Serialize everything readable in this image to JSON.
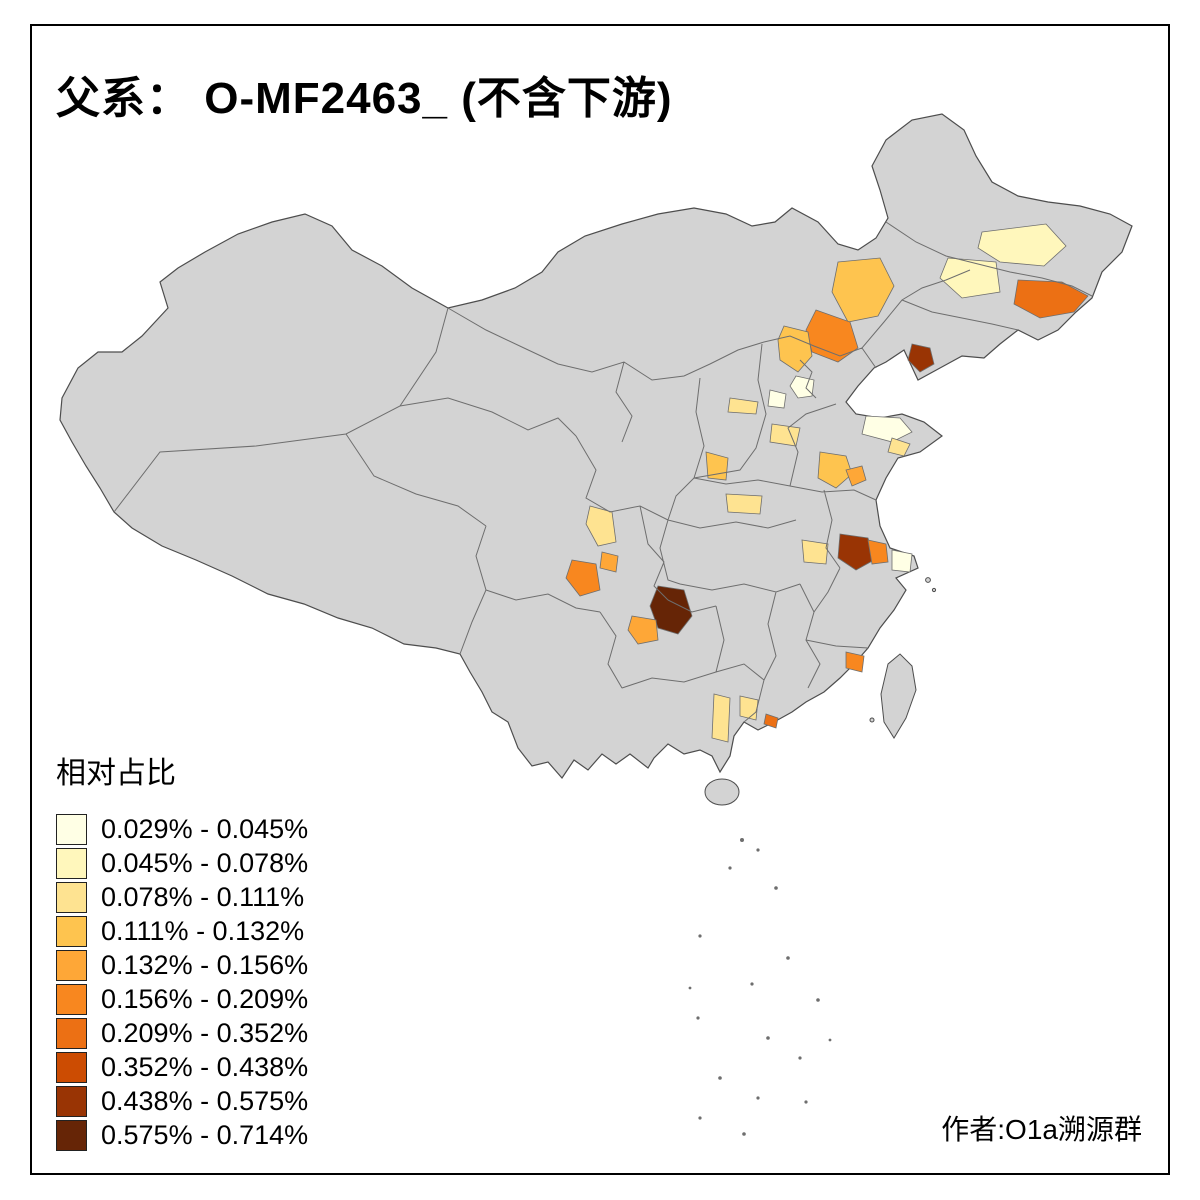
{
  "title": "父系： O-MF2463_ (不含下游)",
  "attribution": "作者:O1a溯源群",
  "legend": {
    "title": "相对占比",
    "entries": [
      {
        "label": "0.029% - 0.045%",
        "color": "#FFFFE5"
      },
      {
        "label": "0.045% - 0.078%",
        "color": "#FFF7BC"
      },
      {
        "label": "0.078% - 0.111%",
        "color": "#FEE391"
      },
      {
        "label": "0.111% - 0.132%",
        "color": "#FEC44F"
      },
      {
        "label": "0.132% - 0.156%",
        "color": "#FEA737"
      },
      {
        "label": "0.156% - 0.209%",
        "color": "#F8871F"
      },
      {
        "label": "0.209% - 0.352%",
        "color": "#EC7014"
      },
      {
        "label": "0.352% - 0.438%",
        "color": "#CC4C02"
      },
      {
        "label": "0.438% - 0.575%",
        "color": "#993404"
      },
      {
        "label": "0.575% - 0.714%",
        "color": "#662506"
      }
    ]
  },
  "map": {
    "land_color": "#D3D3D3",
    "border_color": "#6E6E6E",
    "outline_color": "#4D4D4D",
    "sea_color": "#FFFFFF",
    "regions": [
      {
        "id": "heilongjiang-a",
        "class_index": 1
      },
      {
        "id": "heilongjiang-b",
        "class_index": 1
      },
      {
        "id": "jilin-east",
        "class_index": 6
      },
      {
        "id": "inner-mongolia-a",
        "class_index": 3
      },
      {
        "id": "inner-mongolia-b",
        "class_index": 5
      },
      {
        "id": "hebei-north",
        "class_index": 3
      },
      {
        "id": "liaoning-south",
        "class_index": 8
      },
      {
        "id": "beijing",
        "class_index": 0
      },
      {
        "id": "hebei-mid",
        "class_index": 0
      },
      {
        "id": "shanxi",
        "class_index": 2
      },
      {
        "id": "hebei-south",
        "class_index": 2
      },
      {
        "id": "shandong-peninsula",
        "class_index": 0
      },
      {
        "id": "shandong-east",
        "class_index": 2
      },
      {
        "id": "shandong-mid",
        "class_index": 3
      },
      {
        "id": "shandong-south",
        "class_index": 4
      },
      {
        "id": "shaanxi-mid",
        "class_index": 3
      },
      {
        "id": "henan",
        "class_index": 2
      },
      {
        "id": "sichuan-north",
        "class_index": 2
      },
      {
        "id": "sichuan-chengdu",
        "class_index": 5
      },
      {
        "id": "sichuan-east",
        "class_index": 4
      },
      {
        "id": "hunan-west",
        "class_index": 9
      },
      {
        "id": "guizhou-mid",
        "class_index": 4
      },
      {
        "id": "anhui-mid",
        "class_index": 2
      },
      {
        "id": "jiangsu-mid",
        "class_index": 8
      },
      {
        "id": "jiangsu-east",
        "class_index": 5
      },
      {
        "id": "shanghai-area",
        "class_index": 0
      },
      {
        "id": "fujian-coast",
        "class_index": 5
      },
      {
        "id": "guangdong-west",
        "class_index": 2
      },
      {
        "id": "guangdong-pearl",
        "class_index": 6
      },
      {
        "id": "guangdong-southwest",
        "class_index": 2
      }
    ]
  }
}
